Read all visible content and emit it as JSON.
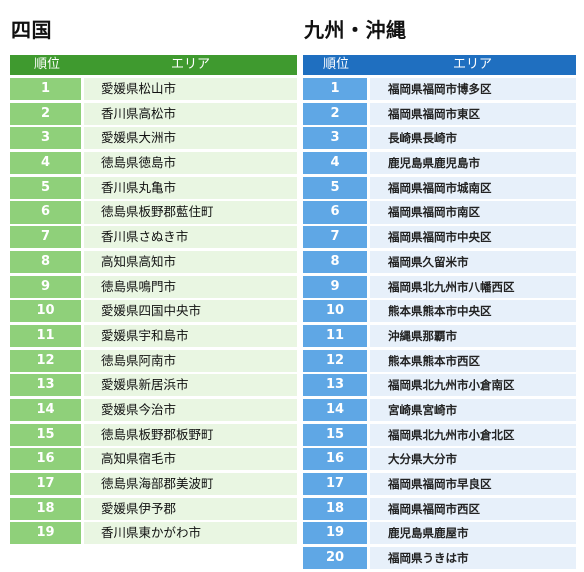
{
  "shikoku": {
    "title": "四国",
    "header": {
      "rank": "順位",
      "area": "エリア"
    },
    "colors": {
      "header": "#3f9a2f",
      "rank_cell": "#8fd07a",
      "area_cell": "#e9f6e2"
    },
    "rows": [
      {
        "rank": "1",
        "area": "愛媛県松山市"
      },
      {
        "rank": "2",
        "area": "香川県高松市"
      },
      {
        "rank": "3",
        "area": "愛媛県大洲市"
      },
      {
        "rank": "4",
        "area": "徳島県徳島市"
      },
      {
        "rank": "5",
        "area": "香川県丸亀市"
      },
      {
        "rank": "6",
        "area": "徳島県板野郡藍住町"
      },
      {
        "rank": "7",
        "area": "香川県さぬき市"
      },
      {
        "rank": "8",
        "area": "高知県高知市"
      },
      {
        "rank": "9",
        "area": "徳島県鳴門市"
      },
      {
        "rank": "10",
        "area": "愛媛県四国中央市"
      },
      {
        "rank": "11",
        "area": "愛媛県宇和島市"
      },
      {
        "rank": "12",
        "area": "徳島県阿南市"
      },
      {
        "rank": "13",
        "area": "愛媛県新居浜市"
      },
      {
        "rank": "14",
        "area": "愛媛県今治市"
      },
      {
        "rank": "15",
        "area": "徳島県板野郡板野町"
      },
      {
        "rank": "16",
        "area": "高知県宿毛市"
      },
      {
        "rank": "17",
        "area": "徳島県海部郡美波町"
      },
      {
        "rank": "18",
        "area": "愛媛県伊予郡"
      },
      {
        "rank": "19",
        "area": "香川県東かがわ市"
      }
    ]
  },
  "kyushu": {
    "title": "九州・沖縄",
    "header": {
      "rank": "順位",
      "area": "エリア"
    },
    "colors": {
      "header": "#1f6fc0",
      "rank_cell": "#5fa7e5",
      "area_cell": "#e7f0fa"
    },
    "rows": [
      {
        "rank": "1",
        "area": "福岡県福岡市博多区"
      },
      {
        "rank": "2",
        "area": "福岡県福岡市東区"
      },
      {
        "rank": "3",
        "area": "長崎県長崎市"
      },
      {
        "rank": "4",
        "area": "鹿児島県鹿児島市"
      },
      {
        "rank": "5",
        "area": "福岡県福岡市城南区"
      },
      {
        "rank": "6",
        "area": "福岡県福岡市南区"
      },
      {
        "rank": "7",
        "area": "福岡県福岡市中央区"
      },
      {
        "rank": "8",
        "area": "福岡県久留米市"
      },
      {
        "rank": "9",
        "area": "福岡県北九州市八幡西区"
      },
      {
        "rank": "10",
        "area": "熊本県熊本市中央区"
      },
      {
        "rank": "11",
        "area": "沖縄県那覇市"
      },
      {
        "rank": "12",
        "area": "熊本県熊本市西区"
      },
      {
        "rank": "13",
        "area": "福岡県北九州市小倉南区"
      },
      {
        "rank": "14",
        "area": "宮崎県宮崎市"
      },
      {
        "rank": "15",
        "area": "福岡県北九州市小倉北区"
      },
      {
        "rank": "16",
        "area": "大分県大分市"
      },
      {
        "rank": "17",
        "area": "福岡県福岡市早良区"
      },
      {
        "rank": "18",
        "area": "福岡県福岡市西区"
      },
      {
        "rank": "19",
        "area": "鹿児島県鹿屋市"
      },
      {
        "rank": "20",
        "area": "福岡県うきは市"
      }
    ]
  }
}
